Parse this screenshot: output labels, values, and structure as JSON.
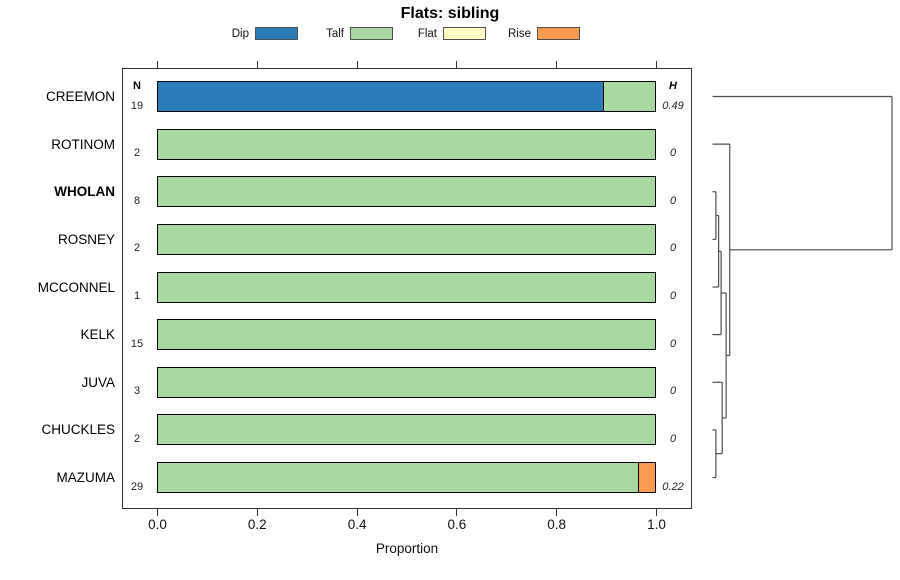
{
  "chart_data": {
    "type": "bar",
    "variant": "stacked-horizontal-proportion-with-dendrogram",
    "title": "Flats: sibling",
    "xlabel": "Proportion",
    "xlim": [
      0,
      1
    ],
    "x_tick_labels": [
      "0.0",
      "0.2",
      "0.4",
      "0.6",
      "0.8",
      "1.0"
    ],
    "grid": false,
    "legend_position": "top",
    "n_header": "N",
    "h_header": "H",
    "legend": [
      {
        "label": "Dip",
        "color": "#2B7DB9"
      },
      {
        "label": "Talf",
        "color": "#A8D9A1"
      },
      {
        "label": "Flat",
        "color": "#FAFAC2"
      },
      {
        "label": "Rise",
        "color": "#F89B4E"
      }
    ],
    "rows": [
      {
        "label": "CREEMON",
        "bold": false,
        "n": 19,
        "h": "0.49",
        "segments": [
          {
            "category": "Dip",
            "value": 0.895
          },
          {
            "category": "Talf",
            "value": 0.105
          }
        ]
      },
      {
        "label": "ROTINOM",
        "bold": false,
        "n": 2,
        "h": "0",
        "segments": [
          {
            "category": "Talf",
            "value": 1
          }
        ]
      },
      {
        "label": "WHOLAN",
        "bold": true,
        "n": 8,
        "h": "0",
        "segments": [
          {
            "category": "Talf",
            "value": 1
          }
        ]
      },
      {
        "label": "ROSNEY",
        "bold": false,
        "n": 2,
        "h": "0",
        "segments": [
          {
            "category": "Talf",
            "value": 1
          }
        ]
      },
      {
        "label": "MCCONNEL",
        "bold": false,
        "n": 1,
        "h": "0",
        "segments": [
          {
            "category": "Talf",
            "value": 1
          }
        ]
      },
      {
        "label": "KELK",
        "bold": false,
        "n": 15,
        "h": "0",
        "segments": [
          {
            "category": "Talf",
            "value": 1
          }
        ]
      },
      {
        "label": "JUVA",
        "bold": false,
        "n": 3,
        "h": "0",
        "segments": [
          {
            "category": "Talf",
            "value": 1
          }
        ]
      },
      {
        "label": "CHUCKLES",
        "bold": false,
        "n": 2,
        "h": "0",
        "segments": [
          {
            "category": "Talf",
            "value": 1
          }
        ]
      },
      {
        "label": "MAZUMA",
        "bold": false,
        "n": 29,
        "h": "0.22",
        "segments": [
          {
            "category": "Talf",
            "value": 0.9655
          },
          {
            "category": "Rise",
            "value": 0.0345
          }
        ]
      }
    ],
    "dendrogram": {
      "orientation": "right",
      "tree": {
        "height": 1.0,
        "children": [
          {
            "leaf": "CREEMON"
          },
          {
            "height": 0.096,
            "children": [
              {
                "leaf": "ROTINOM"
              },
              {
                "height": 0.076,
                "children": [
                  {
                    "height": 0.048,
                    "children": [
                      {
                        "height": 0.034,
                        "children": [
                          {
                            "height": 0.019,
                            "children": [
                              {
                                "leaf": "WHOLAN"
                              },
                              {
                                "leaf": "ROSNEY"
                              }
                            ]
                          },
                          {
                            "leaf": "MCCONNEL"
                          }
                        ]
                      },
                      {
                        "leaf": "KELK"
                      }
                    ]
                  },
                  {
                    "height": 0.054,
                    "children": [
                      {
                        "leaf": "JUVA"
                      },
                      {
                        "height": 0.019,
                        "children": [
                          {
                            "leaf": "CHUCKLES"
                          },
                          {
                            "leaf": "MAZUMA"
                          }
                        ]
                      }
                    ]
                  }
                ]
              }
            ]
          }
        ]
      }
    }
  }
}
